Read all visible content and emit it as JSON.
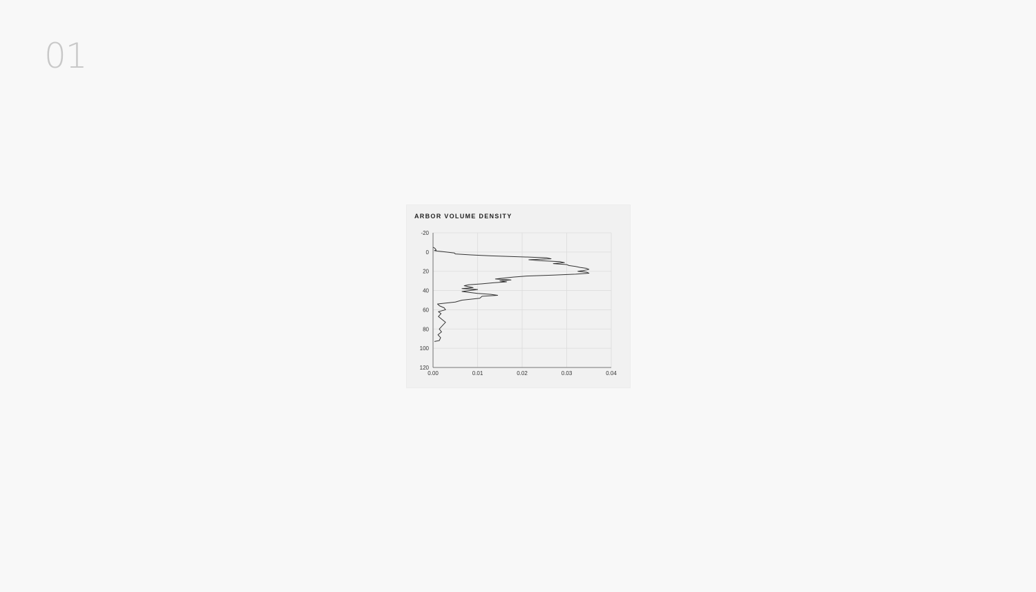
{
  "slide": {
    "number": "01"
  },
  "chart_data": {
    "type": "line",
    "title": "ARBOR VOLUME DENSITY",
    "xlabel": "",
    "ylabel": "",
    "xlim": [
      0.0,
      0.04
    ],
    "ylim": [
      -20,
      120
    ],
    "y_inverted": true,
    "grid": true,
    "x_ticks": [
      "0.00",
      "0.01",
      "0.02",
      "0.03",
      "0.04"
    ],
    "y_ticks": [
      "-20",
      "0",
      "20",
      "40",
      "60",
      "80",
      "100",
      "120"
    ],
    "series": [
      {
        "color": "#333333",
        "points": [
          [
            0.0,
            -5
          ],
          [
            0.0004,
            -4
          ],
          [
            0.0007,
            -2
          ],
          [
            0.0003,
            -1.5
          ],
          [
            0.001,
            -1
          ],
          [
            0.003,
            0
          ],
          [
            0.0048,
            1
          ],
          [
            0.005,
            2
          ],
          [
            0.0085,
            3
          ],
          [
            0.013,
            4
          ],
          [
            0.02,
            5
          ],
          [
            0.0255,
            6
          ],
          [
            0.0265,
            7
          ],
          [
            0.0215,
            8
          ],
          [
            0.024,
            9
          ],
          [
            0.0285,
            10
          ],
          [
            0.0295,
            11
          ],
          [
            0.027,
            12
          ],
          [
            0.03,
            13
          ],
          [
            0.0305,
            14
          ],
          [
            0.032,
            15
          ],
          [
            0.033,
            16
          ],
          [
            0.0345,
            17
          ],
          [
            0.035,
            18
          ],
          [
            0.034,
            19
          ],
          [
            0.0325,
            20
          ],
          [
            0.0345,
            21
          ],
          [
            0.035,
            22
          ],
          [
            0.032,
            23
          ],
          [
            0.027,
            24
          ],
          [
            0.021,
            25
          ],
          [
            0.018,
            26
          ],
          [
            0.016,
            27
          ],
          [
            0.014,
            28
          ],
          [
            0.0175,
            29
          ],
          [
            0.015,
            30
          ],
          [
            0.0165,
            31
          ],
          [
            0.0135,
            32
          ],
          [
            0.011,
            33
          ],
          [
            0.008,
            34
          ],
          [
            0.007,
            35
          ],
          [
            0.009,
            37
          ],
          [
            0.0065,
            38
          ],
          [
            0.01,
            39
          ],
          [
            0.0065,
            41
          ],
          [
            0.01,
            43
          ],
          [
            0.013,
            44
          ],
          [
            0.0145,
            45
          ],
          [
            0.011,
            46
          ],
          [
            0.0105,
            48
          ],
          [
            0.0065,
            50
          ],
          [
            0.005,
            52
          ],
          [
            0.001,
            54
          ],
          [
            0.0015,
            56
          ],
          [
            0.0025,
            58
          ],
          [
            0.0028,
            60
          ],
          [
            0.0012,
            62
          ],
          [
            0.0018,
            64
          ],
          [
            0.0012,
            67
          ],
          [
            0.002,
            70
          ],
          [
            0.0028,
            73
          ],
          [
            0.0022,
            76
          ],
          [
            0.0014,
            80
          ],
          [
            0.0019,
            83
          ],
          [
            0.0011,
            86
          ],
          [
            0.0017,
            89
          ],
          [
            0.0014,
            92
          ],
          [
            0.0003,
            93
          ]
        ]
      }
    ]
  }
}
